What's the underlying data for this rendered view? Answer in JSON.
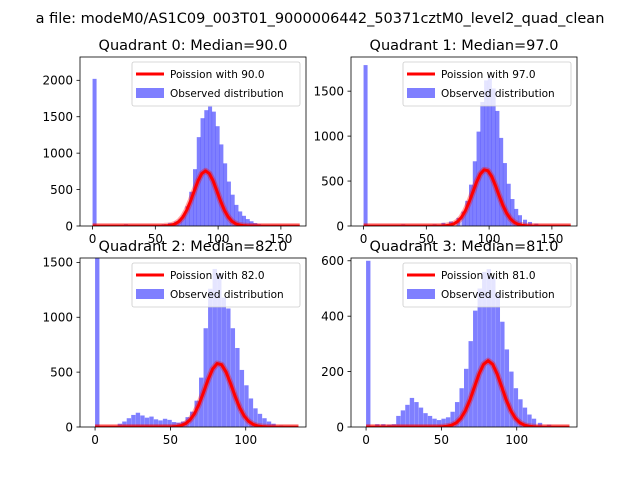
{
  "figure_title": "a file: modeM0/AS1C09_003T01_9000006442_50371cztM0_level2_quad_clean",
  "colors": {
    "fit": "#ff0000",
    "hist": "#0000ff",
    "axis": "#000000"
  },
  "chart_data": [
    {
      "type": "bar",
      "title": "Quadrant 0: Median=90.0",
      "xlim": [
        -10,
        170
      ],
      "ylim": [
        0,
        2320
      ],
      "xticks": [
        0,
        50,
        100,
        150
      ],
      "yticks": [
        0,
        500,
        1000,
        1500,
        2000
      ],
      "bin_width": 3.2,
      "bins": [
        [
          0,
          2020
        ],
        [
          25,
          25
        ],
        [
          35,
          15
        ],
        [
          45,
          12
        ],
        [
          55,
          25
        ],
        [
          60,
          40
        ],
        [
          65,
          60
        ],
        [
          68,
          90
        ],
        [
          71,
          150
        ],
        [
          74,
          270
        ],
        [
          77,
          470
        ],
        [
          80,
          780
        ],
        [
          83,
          1220
        ],
        [
          86,
          1480
        ],
        [
          89,
          1590
        ],
        [
          92,
          1640
        ],
        [
          95,
          1570
        ],
        [
          98,
          1370
        ],
        [
          101,
          1120
        ],
        [
          104,
          860
        ],
        [
          107,
          610
        ],
        [
          110,
          430
        ],
        [
          113,
          290
        ],
        [
          116,
          200
        ],
        [
          119,
          140
        ],
        [
          122,
          95
        ],
        [
          125,
          65
        ],
        [
          128,
          40
        ],
        [
          131,
          25
        ],
        [
          135,
          15
        ],
        [
          140,
          10
        ]
      ],
      "fit": {
        "label": "Poission with 90.0",
        "mean": 90,
        "total": 18000
      },
      "hist_label": "Observed distribution"
    },
    {
      "type": "bar",
      "title": "Quadrant 1: Median=97.0",
      "xlim": [
        -10,
        170
      ],
      "ylim": [
        0,
        1880
      ],
      "xticks": [
        0,
        50,
        100,
        150
      ],
      "yticks": [
        0,
        500,
        1000,
        1500
      ],
      "bin_width": 3.2,
      "bins": [
        [
          0,
          1790
        ],
        [
          30,
          20
        ],
        [
          45,
          15
        ],
        [
          55,
          20
        ],
        [
          62,
          35
        ],
        [
          68,
          50
        ],
        [
          74,
          90
        ],
        [
          78,
          160
        ],
        [
          81,
          280
        ],
        [
          84,
          460
        ],
        [
          87,
          720
        ],
        [
          90,
          1050
        ],
        [
          93,
          1380
        ],
        [
          96,
          1620
        ],
        [
          99,
          1650
        ],
        [
          102,
          1530
        ],
        [
          105,
          1280
        ],
        [
          108,
          980
        ],
        [
          111,
          700
        ],
        [
          114,
          470
        ],
        [
          117,
          300
        ],
        [
          120,
          190
        ],
        [
          123,
          120
        ],
        [
          127,
          70
        ],
        [
          131,
          45
        ],
        [
          136,
          25
        ],
        [
          142,
          15
        ],
        [
          150,
          10
        ]
      ],
      "fit": {
        "label": "Poission with 97.0",
        "mean": 97,
        "total": 15500
      },
      "hist_label": "Observed distribution"
    },
    {
      "type": "bar",
      "title": "Quadrant 2: Median=82.0",
      "xlim": [
        -10,
        140
      ],
      "ylim": [
        0,
        1540
      ],
      "xticks": [
        0,
        50,
        100
      ],
      "yticks": [
        0,
        500,
        1000,
        1500
      ],
      "bin_width": 2.9,
      "bins": [
        [
          0,
          1540
        ],
        [
          15,
          30
        ],
        [
          18,
          50
        ],
        [
          21,
          80
        ],
        [
          24,
          110
        ],
        [
          27,
          130
        ],
        [
          30,
          105
        ],
        [
          33,
          85
        ],
        [
          36,
          95
        ],
        [
          39,
          70
        ],
        [
          42,
          60
        ],
        [
          45,
          75
        ],
        [
          48,
          65
        ],
        [
          51,
          45
        ],
        [
          54,
          40
        ],
        [
          57,
          50
        ],
        [
          60,
          90
        ],
        [
          63,
          140
        ],
        [
          66,
          240
        ],
        [
          69,
          450
        ],
        [
          72,
          900
        ],
        [
          75,
          1260
        ],
        [
          78,
          1440
        ],
        [
          81,
          1400
        ],
        [
          84,
          1180
        ],
        [
          87,
          1080
        ],
        [
          90,
          900
        ],
        [
          93,
          720
        ],
        [
          96,
          520
        ],
        [
          99,
          380
        ],
        [
          102,
          260
        ],
        [
          105,
          170
        ],
        [
          108,
          120
        ],
        [
          111,
          80
        ],
        [
          114,
          50
        ],
        [
          117,
          30
        ],
        [
          122,
          15
        ]
      ],
      "fit": {
        "label": "Poission with 82.0",
        "mean": 82,
        "total": 13200
      },
      "hist_label": "Observed distribution"
    },
    {
      "type": "bar",
      "title": "Quadrant 3: Median=81.0",
      "xlim": [
        -10,
        140
      ],
      "ylim": [
        0,
        610
      ],
      "xticks": [
        0,
        50,
        100
      ],
      "yticks": [
        0,
        200,
        400,
        600
      ],
      "bin_width": 2.9,
      "bins": [
        [
          0,
          600
        ],
        [
          6,
          10
        ],
        [
          10,
          10
        ],
        [
          14,
          8
        ],
        [
          17,
          10
        ],
        [
          20,
          40
        ],
        [
          23,
          60
        ],
        [
          26,
          80
        ],
        [
          29,
          105
        ],
        [
          32,
          90
        ],
        [
          35,
          70
        ],
        [
          38,
          50
        ],
        [
          41,
          40
        ],
        [
          44,
          30
        ],
        [
          47,
          25
        ],
        [
          50,
          30
        ],
        [
          53,
          35
        ],
        [
          56,
          55
        ],
        [
          59,
          90
        ],
        [
          62,
          140
        ],
        [
          65,
          210
        ],
        [
          68,
          310
        ],
        [
          71,
          420
        ],
        [
          74,
          500
        ],
        [
          77,
          560
        ],
        [
          80,
          570
        ],
        [
          83,
          540
        ],
        [
          86,
          480
        ],
        [
          89,
          380
        ],
        [
          92,
          280
        ],
        [
          95,
          200
        ],
        [
          98,
          140
        ],
        [
          101,
          100
        ],
        [
          104,
          70
        ],
        [
          107,
          45
        ],
        [
          110,
          30
        ],
        [
          114,
          15
        ],
        [
          120,
          8
        ]
      ],
      "fit": {
        "label": "Poission with 81.0",
        "mean": 81,
        "total": 5400
      },
      "hist_label": "Observed distribution"
    }
  ]
}
